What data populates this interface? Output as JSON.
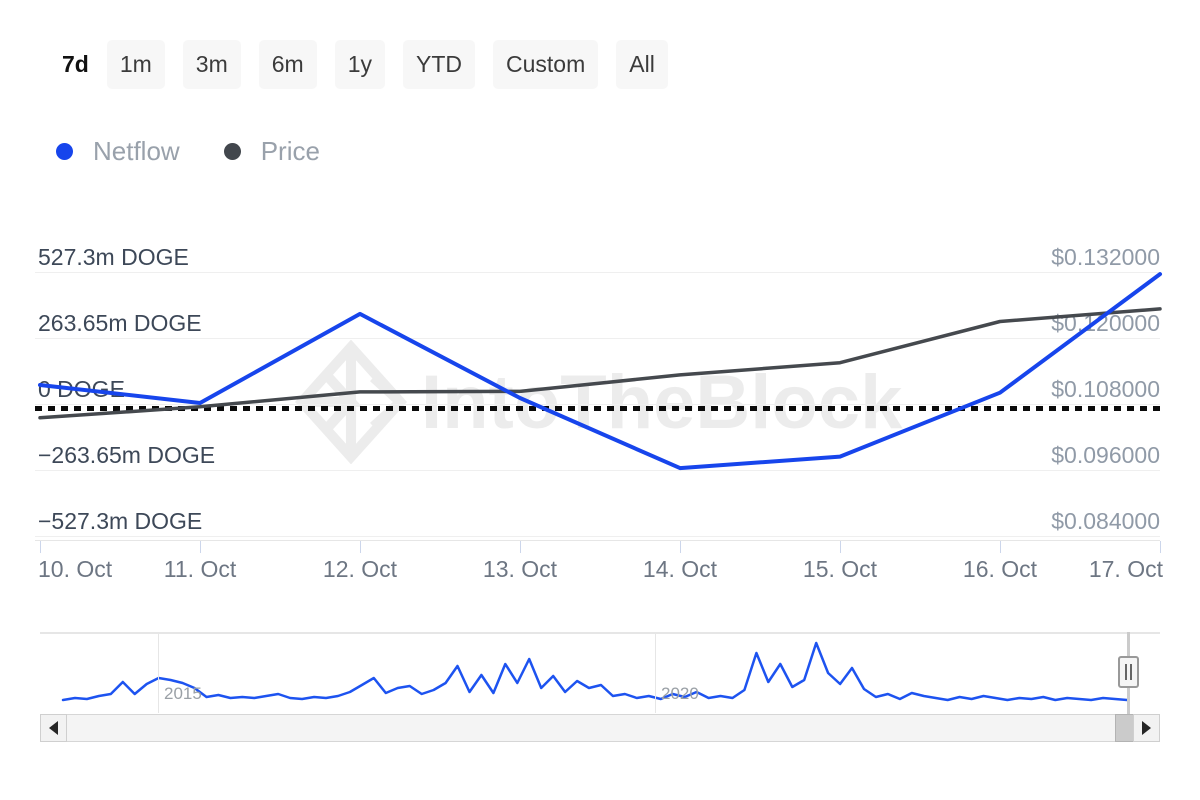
{
  "toolbar": {
    "ranges": [
      {
        "label": "7d",
        "selected": true
      },
      {
        "label": "1m",
        "selected": false
      },
      {
        "label": "3m",
        "selected": false
      },
      {
        "label": "6m",
        "selected": false
      },
      {
        "label": "1y",
        "selected": false
      },
      {
        "label": "YTD",
        "selected": false
      },
      {
        "label": "Custom",
        "selected": false
      },
      {
        "label": "All",
        "selected": false
      }
    ]
  },
  "legend": [
    {
      "label": "Netflow",
      "color": "#1745ec"
    },
    {
      "label": "Price",
      "color": "#42474d"
    }
  ],
  "watermark": {
    "text": "IntoTheBlock"
  },
  "colors": {
    "netflow_line": "#1745ec",
    "price_line": "#45494e",
    "zero_line": "#0a0a0a",
    "navigator_line": "#1d53f0"
  },
  "chart_data": {
    "type": "line",
    "title": "",
    "x_labels": [
      "10. Oct",
      "11. Oct",
      "12. Oct",
      "13. Oct",
      "14. Oct",
      "15. Oct",
      "16. Oct",
      "17. Oct"
    ],
    "y_left": {
      "tick_labels": [
        "527.3m DOGE",
        "263.65m DOGE",
        "0 DOGE",
        "−263.65m DOGE",
        "−527.3m DOGE"
      ],
      "tick_values": [
        527.3,
        263.65,
        0,
        -263.65,
        -527.3
      ],
      "unit": "m DOGE",
      "range": [
        -659.125,
        659.125
      ]
    },
    "y_right": {
      "tick_labels": [
        "$0.132000",
        "$0.120000",
        "$0.108000",
        "$0.096000",
        "$0.084000"
      ],
      "tick_values": [
        0.132,
        0.12,
        0.108,
        0.096,
        0.084
      ],
      "unit": "USD",
      "range": [
        0.078,
        0.138
      ]
    },
    "series": [
      {
        "name": "Netflow",
        "axis": "left",
        "unit": "m DOGE",
        "values": [
          76,
          4,
          360,
          24,
          -256,
          -210,
          45,
          519
        ]
      },
      {
        "name": "Price",
        "axis": "right",
        "unit": "USD",
        "values": [
          0.1055,
          0.1075,
          0.1102,
          0.1103,
          0.1133,
          0.1155,
          0.123,
          0.1253
        ]
      }
    ],
    "zero_dotted_line_value": 0,
    "grid": "horizontal",
    "legend_position": "top-left"
  },
  "navigator": {
    "type": "line",
    "year_ticks": [
      "2015",
      "2020"
    ],
    "values": [
      2,
      4,
      3,
      6,
      8,
      20,
      8,
      18,
      24,
      22,
      19,
      14,
      5,
      7,
      4,
      5,
      4,
      6,
      8,
      4,
      3,
      5,
      4,
      6,
      10,
      17,
      24,
      9,
      14,
      16,
      8,
      12,
      19,
      36,
      10,
      27,
      9,
      38,
      19,
      43,
      14,
      26,
      10,
      21,
      14,
      17,
      6,
      8,
      4,
      6,
      3,
      8,
      5,
      10,
      4,
      6,
      4,
      12,
      49,
      20,
      38,
      15,
      22,
      59,
      29,
      18,
      34,
      13,
      5,
      8,
      3,
      9,
      6,
      4,
      2,
      5,
      3,
      6,
      4,
      2,
      4,
      3,
      5,
      2,
      4,
      3,
      2,
      4,
      3,
      2
    ]
  }
}
